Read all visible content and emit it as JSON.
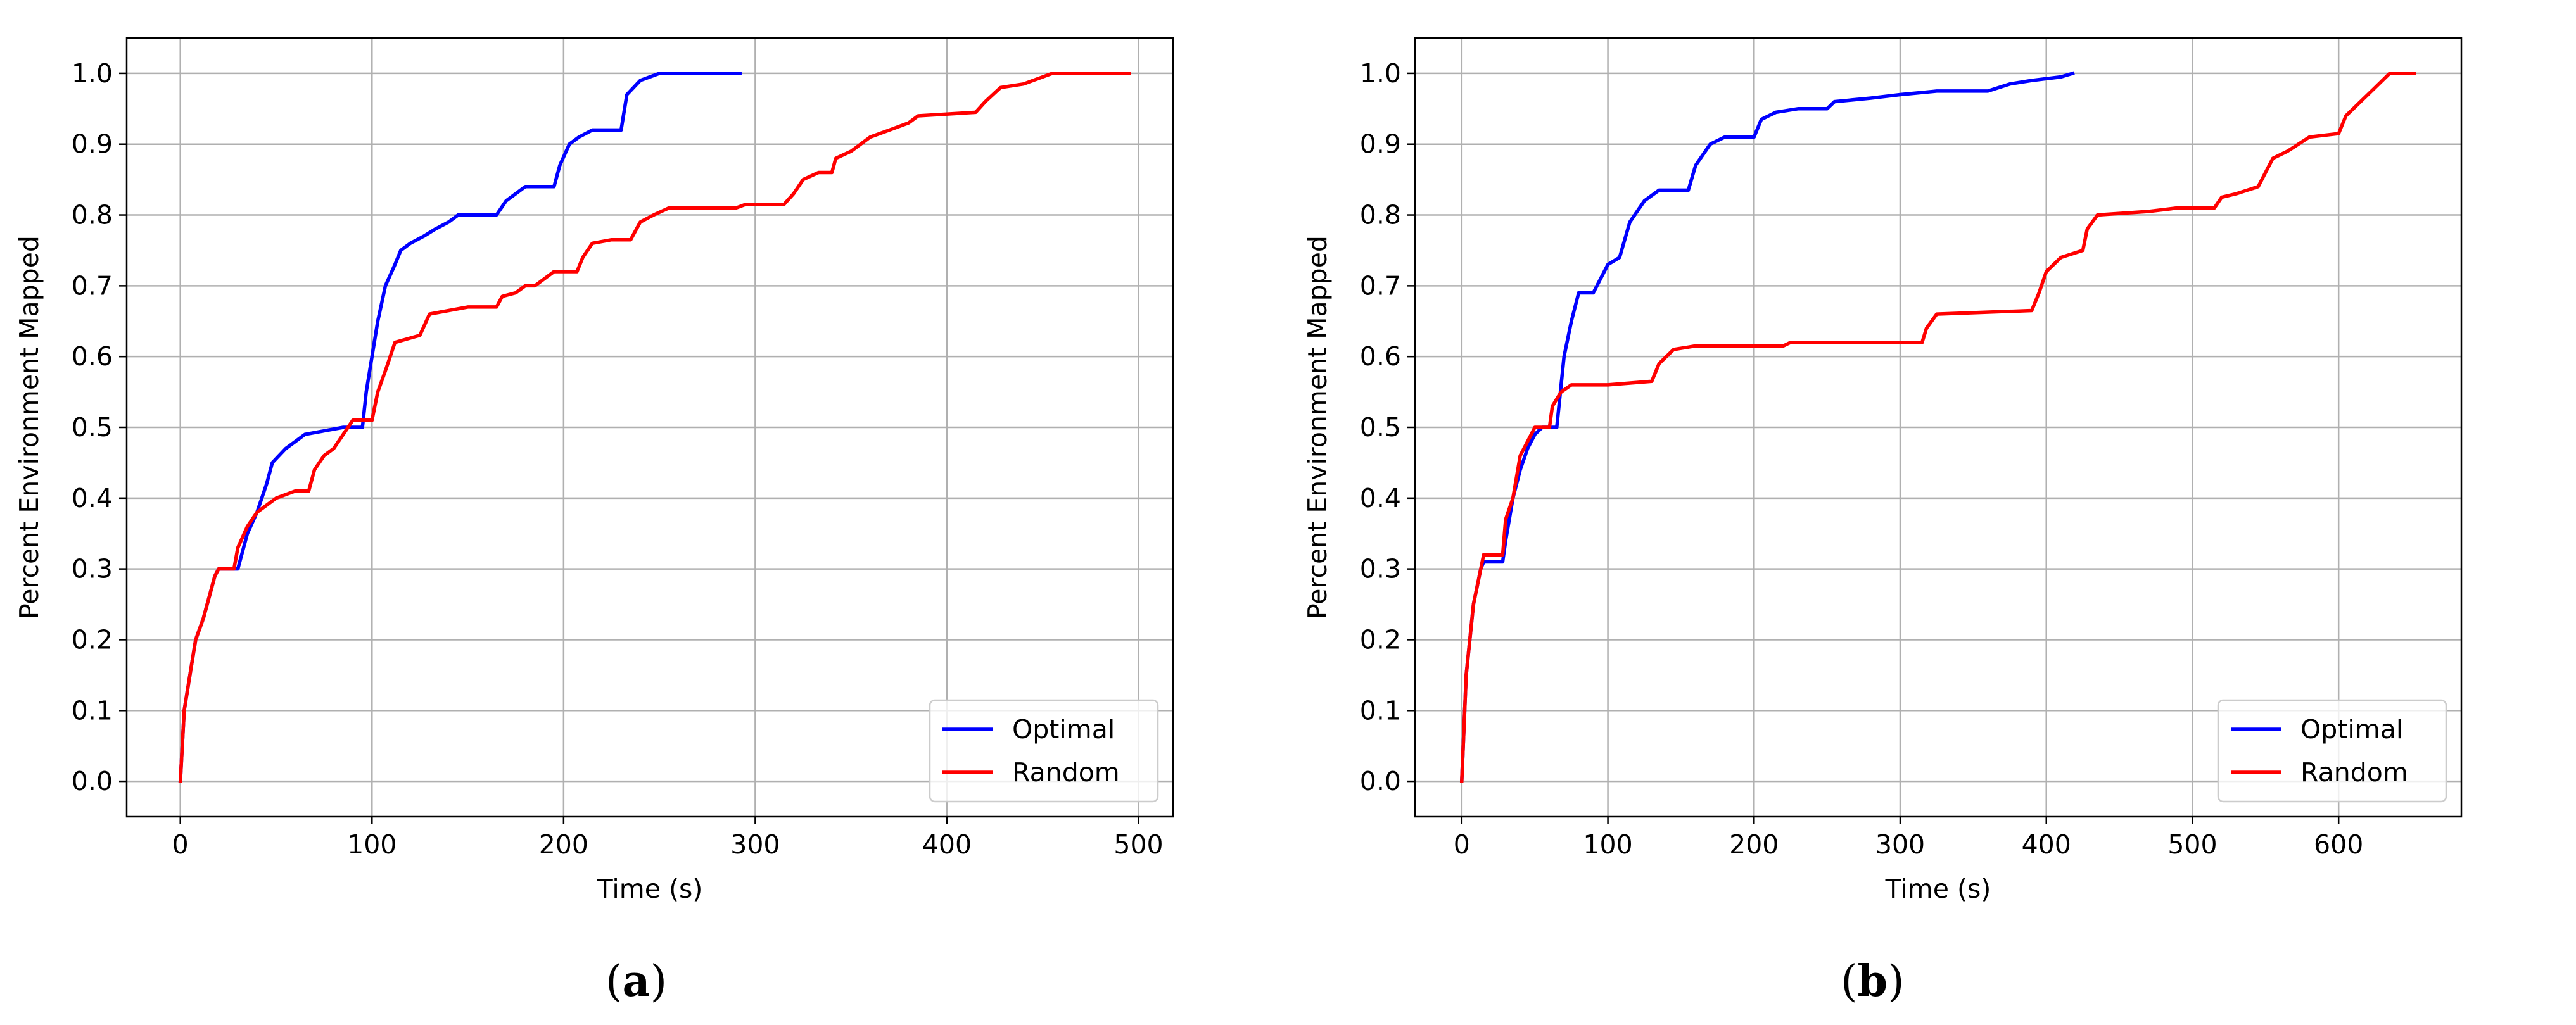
{
  "panels": [
    {
      "caption": "a",
      "chart_data": {
        "type": "line",
        "xlabel": "Time (s)",
        "ylabel": "Percent Environment Mapped",
        "xlim": [
          -28,
          518
        ],
        "ylim": [
          -0.05,
          1.05
        ],
        "xticks": [
          0,
          100,
          200,
          300,
          400,
          500
        ],
        "yticks": [
          0.0,
          0.1,
          0.2,
          0.3,
          0.4,
          0.5,
          0.6,
          0.7,
          0.8,
          0.9,
          1.0
        ],
        "grid": true,
        "legend_position": "bottom-right",
        "series": [
          {
            "name": "Optimal",
            "color": "#0000ff",
            "points": [
              [
                0,
                0.0
              ],
              [
                2,
                0.1
              ],
              [
                5,
                0.15
              ],
              [
                8,
                0.2
              ],
              [
                12,
                0.23
              ],
              [
                15,
                0.26
              ],
              [
                18,
                0.29
              ],
              [
                20,
                0.3
              ],
              [
                30,
                0.3
              ],
              [
                35,
                0.35
              ],
              [
                40,
                0.38
              ],
              [
                45,
                0.42
              ],
              [
                48,
                0.45
              ],
              [
                55,
                0.47
              ],
              [
                60,
                0.48
              ],
              [
                65,
                0.49
              ],
              [
                75,
                0.495
              ],
              [
                85,
                0.5
              ],
              [
                95,
                0.5
              ],
              [
                97,
                0.55
              ],
              [
                100,
                0.6
              ],
              [
                103,
                0.65
              ],
              [
                107,
                0.7
              ],
              [
                112,
                0.73
              ],
              [
                115,
                0.75
              ],
              [
                120,
                0.76
              ],
              [
                127,
                0.77
              ],
              [
                133,
                0.78
              ],
              [
                140,
                0.79
              ],
              [
                145,
                0.8
              ],
              [
                165,
                0.8
              ],
              [
                170,
                0.82
              ],
              [
                175,
                0.83
              ],
              [
                180,
                0.84
              ],
              [
                195,
                0.84
              ],
              [
                198,
                0.87
              ],
              [
                203,
                0.9
              ],
              [
                208,
                0.91
              ],
              [
                215,
                0.92
              ],
              [
                230,
                0.92
              ],
              [
                233,
                0.97
              ],
              [
                240,
                0.99
              ],
              [
                250,
                1.0
              ],
              [
                292,
                1.0
              ]
            ]
          },
          {
            "name": "Random",
            "color": "#ff0000",
            "points": [
              [
                0,
                0.0
              ],
              [
                2,
                0.1
              ],
              [
                5,
                0.15
              ],
              [
                8,
                0.2
              ],
              [
                12,
                0.23
              ],
              [
                15,
                0.26
              ],
              [
                18,
                0.29
              ],
              [
                20,
                0.3
              ],
              [
                28,
                0.3
              ],
              [
                30,
                0.33
              ],
              [
                35,
                0.36
              ],
              [
                40,
                0.38
              ],
              [
                45,
                0.39
              ],
              [
                50,
                0.4
              ],
              [
                55,
                0.405
              ],
              [
                60,
                0.41
              ],
              [
                67,
                0.41
              ],
              [
                70,
                0.44
              ],
              [
                75,
                0.46
              ],
              [
                80,
                0.47
              ],
              [
                85,
                0.49
              ],
              [
                90,
                0.51
              ],
              [
                100,
                0.51
              ],
              [
                103,
                0.55
              ],
              [
                107,
                0.58
              ],
              [
                112,
                0.62
              ],
              [
                125,
                0.63
              ],
              [
                130,
                0.66
              ],
              [
                140,
                0.665
              ],
              [
                150,
                0.67
              ],
              [
                165,
                0.67
              ],
              [
                168,
                0.685
              ],
              [
                175,
                0.69
              ],
              [
                180,
                0.7
              ],
              [
                185,
                0.7
              ],
              [
                190,
                0.71
              ],
              [
                195,
                0.72
              ],
              [
                207,
                0.72
              ],
              [
                210,
                0.74
              ],
              [
                215,
                0.76
              ],
              [
                225,
                0.765
              ],
              [
                235,
                0.765
              ],
              [
                240,
                0.79
              ],
              [
                247,
                0.8
              ],
              [
                255,
                0.81
              ],
              [
                290,
                0.81
              ],
              [
                295,
                0.815
              ],
              [
                315,
                0.815
              ],
              [
                320,
                0.83
              ],
              [
                325,
                0.85
              ],
              [
                333,
                0.86
              ],
              [
                340,
                0.86
              ],
              [
                342,
                0.88
              ],
              [
                350,
                0.89
              ],
              [
                355,
                0.9
              ],
              [
                360,
                0.91
              ],
              [
                370,
                0.92
              ],
              [
                380,
                0.93
              ],
              [
                385,
                0.94
              ],
              [
                415,
                0.945
              ],
              [
                420,
                0.96
              ],
              [
                428,
                0.98
              ],
              [
                440,
                0.985
              ],
              [
                445,
                0.99
              ],
              [
                455,
                1.0
              ],
              [
                495,
                1.0
              ]
            ]
          }
        ]
      }
    },
    {
      "caption": "b",
      "chart_data": {
        "type": "line",
        "xlabel": "Time (s)",
        "ylabel": "Percent Environment Mapped",
        "xlim": [
          -32,
          684
        ],
        "ylim": [
          -0.05,
          1.05
        ],
        "xticks": [
          0,
          100,
          200,
          300,
          400,
          500,
          600
        ],
        "yticks": [
          0.0,
          0.1,
          0.2,
          0.3,
          0.4,
          0.5,
          0.6,
          0.7,
          0.8,
          0.9,
          1.0
        ],
        "grid": true,
        "legend_position": "bottom-right",
        "series": [
          {
            "name": "Optimal",
            "color": "#0000ff",
            "points": [
              [
                0,
                0.0
              ],
              [
                3,
                0.15
              ],
              [
                8,
                0.25
              ],
              [
                13,
                0.3
              ],
              [
                15,
                0.31
              ],
              [
                28,
                0.31
              ],
              [
                30,
                0.34
              ],
              [
                35,
                0.4
              ],
              [
                40,
                0.44
              ],
              [
                45,
                0.47
              ],
              [
                50,
                0.49
              ],
              [
                55,
                0.5
              ],
              [
                65,
                0.5
              ],
              [
                70,
                0.6
              ],
              [
                75,
                0.65
              ],
              [
                80,
                0.69
              ],
              [
                90,
                0.69
              ],
              [
                95,
                0.71
              ],
              [
                100,
                0.73
              ],
              [
                108,
                0.74
              ],
              [
                115,
                0.79
              ],
              [
                125,
                0.82
              ],
              [
                135,
                0.835
              ],
              [
                155,
                0.835
              ],
              [
                160,
                0.87
              ],
              [
                170,
                0.9
              ],
              [
                180,
                0.91
              ],
              [
                200,
                0.91
              ],
              [
                205,
                0.935
              ],
              [
                215,
                0.945
              ],
              [
                230,
                0.95
              ],
              [
                250,
                0.95
              ],
              [
                255,
                0.96
              ],
              [
                280,
                0.965
              ],
              [
                300,
                0.97
              ],
              [
                325,
                0.975
              ],
              [
                360,
                0.975
              ],
              [
                375,
                0.985
              ],
              [
                390,
                0.99
              ],
              [
                410,
                0.995
              ],
              [
                418,
                1.0
              ]
            ]
          },
          {
            "name": "Random",
            "color": "#ff0000",
            "points": [
              [
                0,
                0.0
              ],
              [
                3,
                0.15
              ],
              [
                8,
                0.25
              ],
              [
                15,
                0.32
              ],
              [
                28,
                0.32
              ],
              [
                30,
                0.37
              ],
              [
                35,
                0.4
              ],
              [
                40,
                0.46
              ],
              [
                45,
                0.48
              ],
              [
                50,
                0.5
              ],
              [
                60,
                0.5
              ],
              [
                62,
                0.53
              ],
              [
                68,
                0.55
              ],
              [
                75,
                0.56
              ],
              [
                100,
                0.56
              ],
              [
                130,
                0.565
              ],
              [
                135,
                0.59
              ],
              [
                140,
                0.6
              ],
              [
                145,
                0.61
              ],
              [
                160,
                0.615
              ],
              [
                220,
                0.615
              ],
              [
                225,
                0.62
              ],
              [
                315,
                0.62
              ],
              [
                318,
                0.64
              ],
              [
                325,
                0.66
              ],
              [
                390,
                0.665
              ],
              [
                395,
                0.69
              ],
              [
                400,
                0.72
              ],
              [
                410,
                0.74
              ],
              [
                425,
                0.75
              ],
              [
                428,
                0.78
              ],
              [
                435,
                0.8
              ],
              [
                470,
                0.805
              ],
              [
                490,
                0.81
              ],
              [
                515,
                0.81
              ],
              [
                520,
                0.825
              ],
              [
                530,
                0.83
              ],
              [
                545,
                0.84
              ],
              [
                550,
                0.86
              ],
              [
                555,
                0.88
              ],
              [
                565,
                0.89
              ],
              [
                580,
                0.91
              ],
              [
                600,
                0.915
              ],
              [
                605,
                0.94
              ],
              [
                615,
                0.96
              ],
              [
                625,
                0.98
              ],
              [
                635,
                1.0
              ],
              [
                652,
                1.0
              ]
            ]
          }
        ]
      }
    }
  ]
}
